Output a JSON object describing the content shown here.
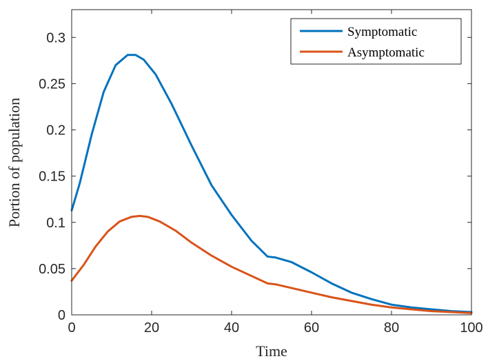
{
  "chart_data": {
    "type": "line",
    "xlabel": "Time",
    "ylabel": "Portion of population",
    "xlim": [
      0,
      100
    ],
    "ylim": [
      0,
      0.33
    ],
    "x_ticks": [
      0,
      20,
      40,
      60,
      80,
      100
    ],
    "x_tick_labels": [
      "0",
      "20",
      "40",
      "60",
      "80",
      "100"
    ],
    "y_ticks": [
      0,
      0.05,
      0.1,
      0.15,
      0.2,
      0.25,
      0.3
    ],
    "y_tick_labels": [
      "0",
      "0.05",
      "0.1",
      "0.15",
      "0.2",
      "0.25",
      "0.3"
    ],
    "grid": false,
    "legend_position": "top-right",
    "series": [
      {
        "name": "Symptomatic",
        "color": "#0072BD",
        "x": [
          0,
          2,
          5,
          8,
          11,
          14,
          16,
          18,
          21,
          25,
          30,
          35,
          40,
          45,
          49,
          51,
          55,
          60,
          65,
          70,
          75,
          80,
          85,
          90,
          95,
          100
        ],
        "y": [
          0.113,
          0.142,
          0.195,
          0.241,
          0.27,
          0.281,
          0.281,
          0.276,
          0.26,
          0.228,
          0.183,
          0.14,
          0.108,
          0.08,
          0.063,
          0.062,
          0.057,
          0.046,
          0.034,
          0.024,
          0.017,
          0.011,
          0.008,
          0.006,
          0.004,
          0.003
        ]
      },
      {
        "name": "Asymptomatic",
        "color": "#D95319",
        "x": [
          0,
          3,
          6,
          9,
          12,
          15,
          17,
          19,
          22,
          26,
          30,
          35,
          40,
          45,
          49,
          51,
          55,
          60,
          65,
          70,
          75,
          80,
          85,
          90,
          95,
          100
        ],
        "y": [
          0.037,
          0.054,
          0.074,
          0.09,
          0.101,
          0.106,
          0.107,
          0.106,
          0.101,
          0.091,
          0.078,
          0.064,
          0.052,
          0.042,
          0.034,
          0.033,
          0.029,
          0.024,
          0.019,
          0.015,
          0.011,
          0.008,
          0.006,
          0.004,
          0.003,
          0.002
        ]
      }
    ]
  }
}
